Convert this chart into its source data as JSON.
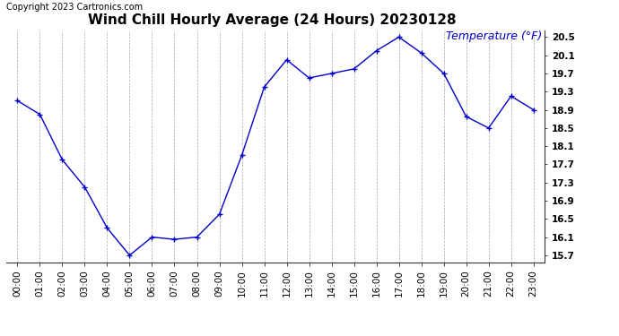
{
  "title": "Wind Chill Hourly Average (24 Hours) 20230128",
  "ylabel_text": "Temperature (°F)",
  "copyright": "Copyright 2023 Cartronics.com",
  "line_color": "#0000cc",
  "background_color": "#ffffff",
  "grid_color": "#aaaaaa",
  "hours": [
    "00:00",
    "01:00",
    "02:00",
    "03:00",
    "04:00",
    "05:00",
    "06:00",
    "07:00",
    "08:00",
    "09:00",
    "10:00",
    "11:00",
    "12:00",
    "13:00",
    "14:00",
    "15:00",
    "16:00",
    "17:00",
    "18:00",
    "19:00",
    "20:00",
    "21:00",
    "22:00",
    "23:00"
  ],
  "values": [
    19.1,
    18.8,
    17.8,
    17.2,
    16.3,
    15.7,
    16.1,
    16.05,
    16.1,
    16.6,
    17.9,
    19.4,
    20.0,
    19.6,
    19.7,
    19.8,
    20.2,
    20.5,
    20.15,
    19.7,
    18.75,
    18.5,
    19.2,
    18.9
  ],
  "ylim_min": 15.55,
  "ylim_max": 20.65,
  "yticks": [
    15.7,
    16.1,
    16.5,
    16.9,
    17.3,
    17.7,
    18.1,
    18.5,
    18.9,
    19.3,
    19.7,
    20.1,
    20.5
  ],
  "title_fontsize": 11,
  "ylabel_fontsize": 9,
  "tick_fontsize": 7.5,
  "copyright_fontsize": 7,
  "marker": "+",
  "marker_size": 4,
  "line_width": 1.0
}
